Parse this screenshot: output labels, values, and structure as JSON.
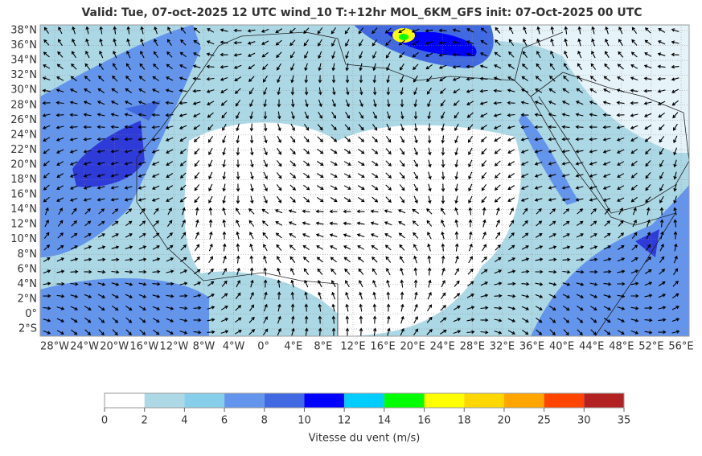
{
  "title": "Valid: Tue, 07-oct-2025   12 UTC   wind_10   T:+12hr   MOL_6KM_GFS   init: 07-Oct-2025    00 UTC",
  "lat_ticks": [
    {
      "value": 38,
      "label": "38°N"
    },
    {
      "value": 36,
      "label": "36°N"
    },
    {
      "value": 34,
      "label": "34°N"
    },
    {
      "value": 32,
      "label": "32°N"
    },
    {
      "value": 30,
      "label": "30°N"
    },
    {
      "value": 28,
      "label": "28°N"
    },
    {
      "value": 26,
      "label": "26°N"
    },
    {
      "value": 24,
      "label": "24°N"
    },
    {
      "value": 22,
      "label": "22°N"
    },
    {
      "value": 20,
      "label": "20°N"
    },
    {
      "value": 18,
      "label": "18°N"
    },
    {
      "value": 16,
      "label": "16°N"
    },
    {
      "value": 14,
      "label": "14°N"
    },
    {
      "value": 12,
      "label": "12°N"
    },
    {
      "value": 10,
      "label": "10°N"
    },
    {
      "value": 8,
      "label": "8°N"
    },
    {
      "value": 6,
      "label": "6°N"
    },
    {
      "value": 4,
      "label": "4°N"
    },
    {
      "value": 2,
      "label": "2°N"
    },
    {
      "value": 0,
      "label": "0°"
    },
    {
      "value": -2,
      "label": "2°S"
    }
  ],
  "lon_ticks": [
    {
      "value": -28,
      "label": "28°W"
    },
    {
      "value": -24,
      "label": "24°W"
    },
    {
      "value": -20,
      "label": "20°W"
    },
    {
      "value": -16,
      "label": "16°W"
    },
    {
      "value": -12,
      "label": "12°W"
    },
    {
      "value": -8,
      "label": "8°W"
    },
    {
      "value": -4,
      "label": "4°W"
    },
    {
      "value": 0,
      "label": "0°"
    },
    {
      "value": 4,
      "label": "4°E"
    },
    {
      "value": 8,
      "label": "8°E"
    },
    {
      "value": 12,
      "label": "12°E"
    },
    {
      "value": 16,
      "label": "16°E"
    },
    {
      "value": 20,
      "label": "20°E"
    },
    {
      "value": 24,
      "label": "24°E"
    },
    {
      "value": 28,
      "label": "28°E"
    },
    {
      "value": 32,
      "label": "32°E"
    },
    {
      "value": 36,
      "label": "36°E"
    },
    {
      "value": 40,
      "label": "40°E"
    },
    {
      "value": 44,
      "label": "44°E"
    },
    {
      "value": 48,
      "label": "48°E"
    },
    {
      "value": 52,
      "label": "52°E"
    },
    {
      "value": 56,
      "label": "56°E"
    }
  ],
  "colorbar": {
    "label": "Vitesse du vent (m/s)",
    "bounds": [
      0,
      2,
      4,
      6,
      8,
      10,
      12,
      14,
      16,
      18,
      20,
      25,
      30,
      35
    ],
    "colors": [
      "#ffffff",
      "#add8e6",
      "#87ceeb",
      "#6495ed",
      "#4169e1",
      "#0000ff",
      "#00ccff",
      "#00ff00",
      "#ffff00",
      "#ffd700",
      "#ffa500",
      "#ff4500",
      "#b22222"
    ]
  }
}
